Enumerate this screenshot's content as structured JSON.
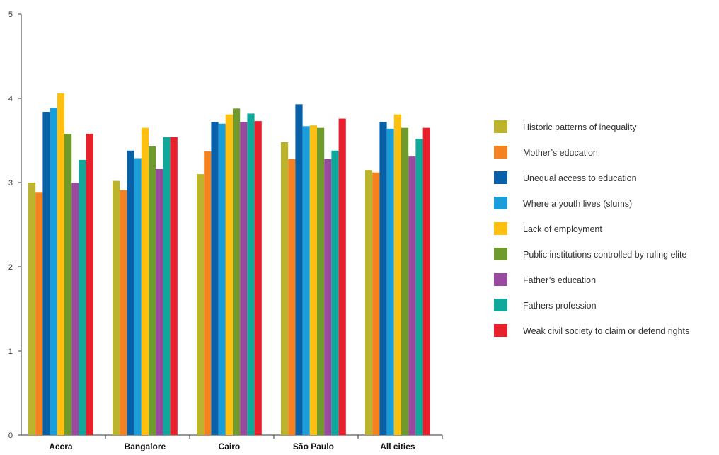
{
  "chart_data": {
    "type": "bar",
    "categories": [
      "Accra",
      "Bangalore",
      "Cairo",
      "São Paulo",
      "All cities"
    ],
    "ylim": [
      0,
      5
    ],
    "yticks": [
      0,
      1,
      2,
      3,
      4,
      5
    ],
    "grid": false,
    "legend_position": "right",
    "series": [
      {
        "name": "Historic patterns of inequality",
        "color": "#BDB42E",
        "values": [
          3.0,
          3.02,
          3.1,
          3.48,
          3.15
        ]
      },
      {
        "name": "Mother’s education",
        "color": "#F58220",
        "values": [
          2.88,
          2.91,
          3.37,
          3.28,
          3.12
        ]
      },
      {
        "name": "Unequal access to education",
        "color": "#0860A8",
        "values": [
          3.84,
          3.38,
          3.72,
          3.93,
          3.72
        ]
      },
      {
        "name": "Where a youth lives (slums)",
        "color": "#1B9DD9",
        "values": [
          3.89,
          3.29,
          3.7,
          3.67,
          3.64
        ]
      },
      {
        "name": "Lack of employment",
        "color": "#FDC010",
        "values": [
          4.06,
          3.65,
          3.81,
          3.68,
          3.81
        ]
      },
      {
        "name": "Public institutions controlled by ruling elite",
        "color": "#6F9A2C",
        "values": [
          3.58,
          3.43,
          3.88,
          3.65,
          3.65
        ]
      },
      {
        "name": "Father’s education",
        "color": "#9A4A9E",
        "values": [
          3.0,
          3.16,
          3.72,
          3.28,
          3.31
        ]
      },
      {
        "name": "Fathers profession",
        "color": "#0FA89B",
        "values": [
          3.27,
          3.54,
          3.82,
          3.38,
          3.52
        ]
      },
      {
        "name": "Weak civil society to claim or defend rights",
        "color": "#E8202B",
        "values": [
          3.58,
          3.54,
          3.73,
          3.76,
          3.65
        ]
      }
    ]
  }
}
